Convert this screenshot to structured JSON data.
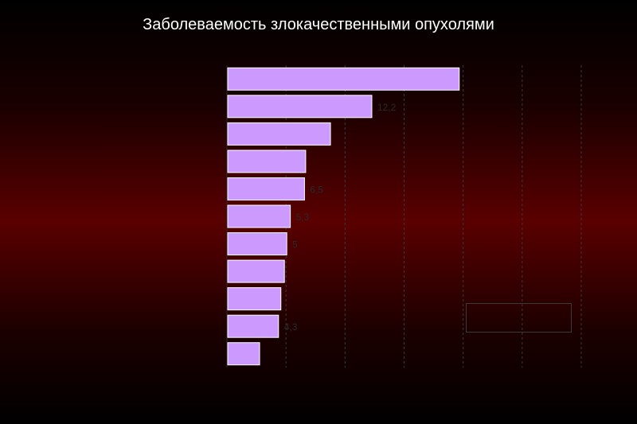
{
  "title": "Заболеваемость злокачественными опухолями",
  "chart_data": {
    "type": "bar",
    "orientation": "horizontal",
    "categories": [
      "",
      "",
      "",
      "",
      "",
      "",
      "",
      "",
      "",
      "",
      ""
    ],
    "values": [
      19.6,
      12.2,
      8.7,
      6.6,
      6.5,
      5.3,
      5,
      4.8,
      4.5,
      4.3,
      2.7
    ],
    "value_labels": [
      "",
      "12,2",
      "",
      "",
      "6,5",
      "5,3",
      "5",
      "",
      "",
      "4,3",
      ""
    ],
    "xlim": [
      0,
      30
    ],
    "xticks": [
      0,
      5,
      10,
      15,
      20,
      25,
      30
    ],
    "xtick_labels": [
      "",
      "",
      "",
      "",
      "",
      "",
      ""
    ],
    "grid": "vertical dashed",
    "legend_label": "",
    "bar_color": "#cc99ff"
  }
}
